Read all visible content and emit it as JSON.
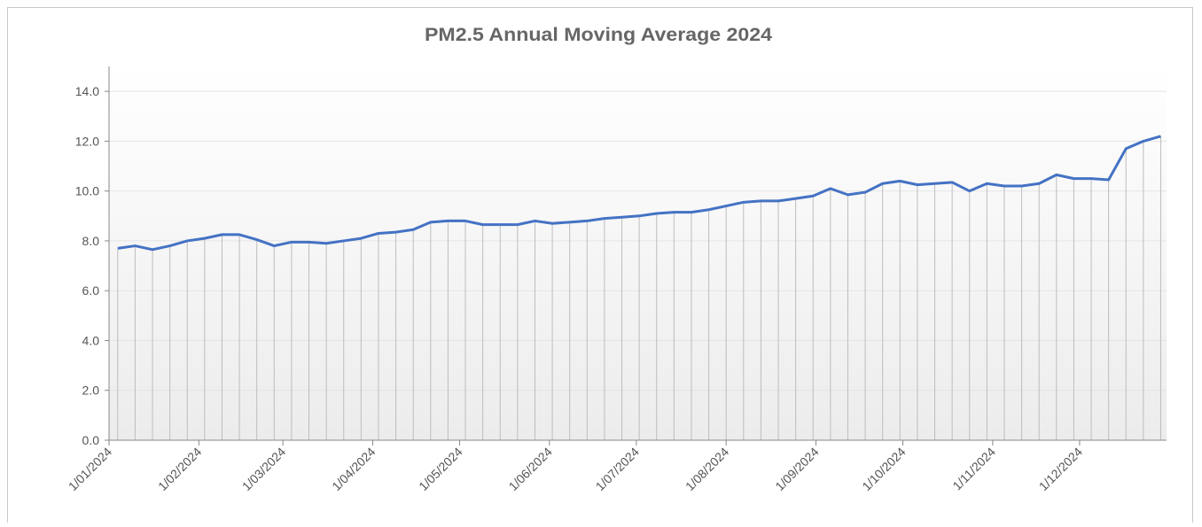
{
  "chart_data": {
    "type": "line",
    "title": "PM2.5 Annual Moving Average 2024",
    "x": [
      "2024-01-04",
      "2024-01-10",
      "2024-01-16",
      "2024-01-22",
      "2024-01-28",
      "2024-02-03",
      "2024-02-09",
      "2024-02-15",
      "2024-02-21",
      "2024-02-27",
      "2024-03-04",
      "2024-03-10",
      "2024-03-16",
      "2024-03-22",
      "2024-03-28",
      "2024-04-03",
      "2024-04-09",
      "2024-04-15",
      "2024-04-21",
      "2024-04-27",
      "2024-05-03",
      "2024-05-09",
      "2024-05-15",
      "2024-05-21",
      "2024-05-27",
      "2024-06-02",
      "2024-06-08",
      "2024-06-14",
      "2024-06-20",
      "2024-06-26",
      "2024-07-02",
      "2024-07-08",
      "2024-07-14",
      "2024-07-20",
      "2024-07-26",
      "2024-08-01",
      "2024-08-07",
      "2024-08-13",
      "2024-08-19",
      "2024-08-25",
      "2024-08-31",
      "2024-09-06",
      "2024-09-12",
      "2024-09-18",
      "2024-09-24",
      "2024-09-30",
      "2024-10-06",
      "2024-10-12",
      "2024-10-18",
      "2024-10-24",
      "2024-10-30",
      "2024-11-05",
      "2024-11-11",
      "2024-11-17",
      "2024-11-23",
      "2024-11-29",
      "2024-12-05",
      "2024-12-11",
      "2024-12-17",
      "2024-12-23",
      "2024-12-29"
    ],
    "series": [
      {
        "color": "#4472c4",
        "values": [
          7.7,
          7.8,
          7.65,
          7.8,
          8.0,
          8.1,
          8.25,
          8.25,
          8.05,
          7.8,
          7.95,
          7.95,
          7.9,
          8.0,
          8.1,
          8.3,
          8.35,
          8.45,
          8.75,
          8.8,
          8.8,
          8.65,
          8.65,
          8.65,
          8.8,
          8.7,
          8.75,
          8.8,
          8.9,
          8.95,
          9.0,
          9.1,
          9.15,
          9.15,
          9.25,
          9.4,
          9.55,
          9.6,
          9.6,
          9.7,
          9.8,
          10.1,
          9.85,
          9.95,
          10.3,
          10.4,
          10.25,
          10.3,
          10.35,
          10.0,
          10.3,
          10.2,
          10.2,
          10.3,
          10.65,
          10.5,
          10.5,
          10.45,
          11.7,
          12.0,
          12.2
        ]
      }
    ],
    "xlim": [
      "2024-01-01",
      "2024-12-31"
    ],
    "xticks": [
      {
        "value": "2024-01-01",
        "label": "1/01/2024"
      },
      {
        "value": "2024-02-01",
        "label": "1/02/2024"
      },
      {
        "value": "2024-03-01",
        "label": "1/03/2024"
      },
      {
        "value": "2024-04-01",
        "label": "1/04/2024"
      },
      {
        "value": "2024-05-01",
        "label": "1/05/2024"
      },
      {
        "value": "2024-06-01",
        "label": "1/06/2024"
      },
      {
        "value": "2024-07-01",
        "label": "1/07/2024"
      },
      {
        "value": "2024-08-01",
        "label": "1/08/2024"
      },
      {
        "value": "2024-09-01",
        "label": "1/09/2024"
      },
      {
        "value": "2024-10-01",
        "label": "1/10/2024"
      },
      {
        "value": "2024-11-01",
        "label": "1/11/2024"
      },
      {
        "value": "2024-12-01",
        "label": "1/12/2024"
      }
    ],
    "ylim": [
      0,
      15
    ],
    "yticks": [
      {
        "value": 0,
        "label": "0.0"
      },
      {
        "value": 2,
        "label": "2.0"
      },
      {
        "value": 4,
        "label": "4.0"
      },
      {
        "value": 6,
        "label": "6.0"
      },
      {
        "value": 8,
        "label": "8.0"
      },
      {
        "value": 10,
        "label": "10.0"
      },
      {
        "value": 12,
        "label": "12.0"
      },
      {
        "value": 14,
        "label": "14.0"
      }
    ],
    "grid": true,
    "drop_lines": true
  }
}
